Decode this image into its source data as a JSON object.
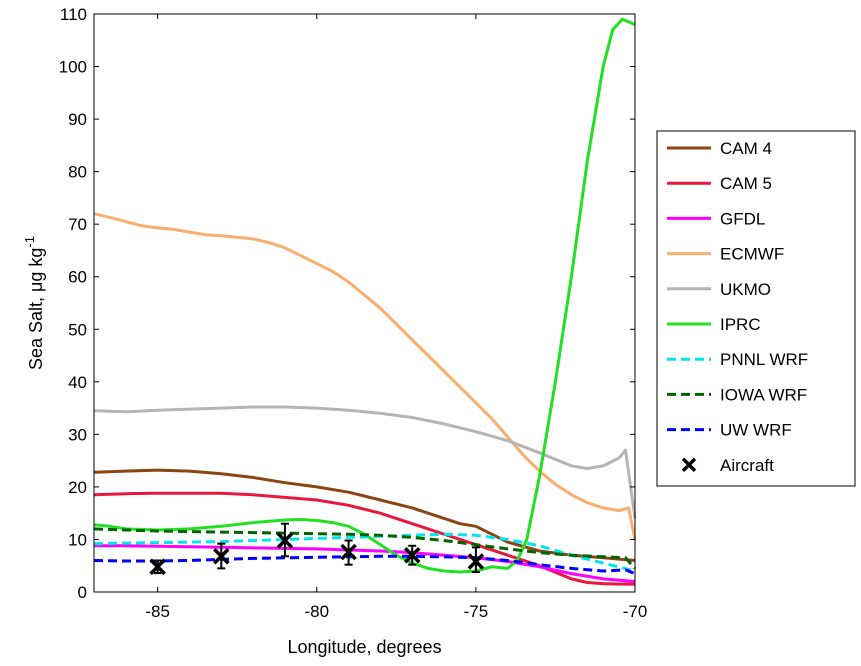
{
  "chart_data": {
    "type": "line",
    "xlabel": "Longitude, degrees",
    "ylabel_main": "Sea Salt, ",
    "ylabel_unit": "μg kg",
    "ylabel_exp": "-1",
    "xlim": [
      -87,
      -70
    ],
    "ylim": [
      0,
      110
    ],
    "xticks": [
      -85,
      -80,
      -75,
      -70
    ],
    "yticks": [
      0,
      10,
      20,
      30,
      40,
      50,
      60,
      70,
      80,
      90,
      100,
      110
    ],
    "grid": false,
    "legend_position": "right",
    "series": [
      {
        "name": "CAM 4",
        "color": "#8B4513",
        "dash": "solid",
        "x": [
          -87,
          -86,
          -85,
          -84,
          -83,
          -82,
          -81,
          -80,
          -79,
          -78,
          -77,
          -76,
          -75.5,
          -75,
          -74.5,
          -74,
          -73,
          -72,
          -71,
          -70
        ],
        "y": [
          22.8,
          23.0,
          23.2,
          23.0,
          22.5,
          21.8,
          20.8,
          20.0,
          19.0,
          17.5,
          16.0,
          14.0,
          13.0,
          12.5,
          11.0,
          9.5,
          7.8,
          7.0,
          6.5,
          6.0
        ]
      },
      {
        "name": "CAM 5",
        "color": "#E8173C",
        "dash": "solid",
        "x": [
          -87,
          -86,
          -85,
          -84,
          -83,
          -82,
          -81,
          -80,
          -79,
          -78,
          -77,
          -76,
          -75,
          -74,
          -73,
          -72,
          -71.5,
          -71,
          -70.5,
          -70
        ],
        "y": [
          18.5,
          18.7,
          18.8,
          18.8,
          18.8,
          18.5,
          18.0,
          17.5,
          16.5,
          15.0,
          13.0,
          11.0,
          9.0,
          7.0,
          5.0,
          2.5,
          1.8,
          1.6,
          1.5,
          1.5
        ]
      },
      {
        "name": "GFDL",
        "color": "#FF00FF",
        "dash": "solid",
        "x": [
          -87,
          -86,
          -85,
          -84,
          -83,
          -82,
          -81,
          -80,
          -79,
          -78,
          -77,
          -76,
          -75,
          -74,
          -73,
          -72,
          -71,
          -70
        ],
        "y": [
          8.8,
          8.8,
          8.7,
          8.6,
          8.5,
          8.4,
          8.3,
          8.2,
          8.0,
          7.8,
          7.5,
          7.0,
          6.5,
          5.8,
          4.8,
          3.5,
          2.5,
          2.0
        ]
      },
      {
        "name": "ECMWF",
        "color": "#F8AE6F",
        "dash": "solid",
        "x": [
          -87,
          -86.5,
          -86,
          -85.5,
          -85,
          -84.5,
          -84,
          -83.5,
          -83,
          -82.5,
          -82,
          -81.5,
          -81,
          -80.5,
          -80,
          -79.5,
          -79,
          -78.5,
          -78,
          -77.5,
          -77,
          -76.5,
          -76,
          -75.5,
          -75,
          -74.5,
          -74,
          -73.5,
          -73,
          -72.5,
          -72,
          -71.5,
          -71,
          -70.5,
          -70.2,
          -70
        ],
        "y": [
          72,
          71.3,
          70.5,
          69.7,
          69.3,
          69.0,
          68.5,
          68.0,
          67.8,
          67.5,
          67.2,
          66.5,
          65.5,
          64.0,
          62.5,
          61.0,
          59.0,
          56.5,
          54.0,
          51.0,
          48.0,
          45.0,
          42.0,
          39.0,
          36.0,
          33.0,
          29.5,
          26.0,
          23.0,
          20.5,
          18.5,
          17.0,
          16.0,
          15.5,
          16.0,
          10.0
        ]
      },
      {
        "name": "UKMO",
        "color": "#B4B4B4",
        "dash": "solid",
        "x": [
          -87,
          -86,
          -85,
          -84,
          -83,
          -82,
          -81,
          -80,
          -79,
          -78,
          -77,
          -76,
          -75,
          -74,
          -73,
          -72,
          -71.5,
          -71,
          -70.5,
          -70.3,
          -70
        ],
        "y": [
          34.5,
          34.3,
          34.6,
          34.8,
          35.0,
          35.2,
          35.2,
          35.0,
          34.6,
          34.0,
          33.2,
          32.0,
          30.5,
          28.8,
          26.5,
          24.0,
          23.5,
          24.0,
          25.5,
          27.0,
          14.0
        ]
      },
      {
        "name": "IPRC",
        "color": "#22E022",
        "dash": "solid",
        "x": [
          -87,
          -86.5,
          -86,
          -85,
          -84,
          -83,
          -82,
          -81,
          -80.5,
          -80,
          -79.5,
          -79,
          -78.5,
          -78,
          -77.5,
          -77,
          -76.5,
          -76,
          -75.5,
          -75,
          -74.5,
          -74,
          -73.7,
          -73.4,
          -73,
          -72.5,
          -72,
          -71.5,
          -71.0,
          -70.7,
          -70.4,
          -70.2,
          -70
        ],
        "y": [
          12.8,
          12.5,
          12.0,
          11.8,
          12.0,
          12.5,
          13.2,
          13.7,
          13.8,
          13.6,
          13.2,
          12.5,
          11.0,
          9.0,
          7.0,
          5.5,
          4.5,
          4.0,
          3.8,
          4.0,
          4.8,
          4.5,
          6.0,
          10.0,
          22.0,
          40.0,
          60.0,
          82.0,
          100.0,
          107.0,
          109.0,
          108.5,
          108.0
        ]
      },
      {
        "name": "PNNL WRF",
        "color": "#00E5EE",
        "dash": "dashed",
        "x": [
          -87,
          -86,
          -85,
          -84,
          -83,
          -82,
          -81,
          -80,
          -79,
          -78,
          -77,
          -76,
          -75,
          -74,
          -73,
          -72,
          -71,
          -70
        ],
        "y": [
          9.2,
          9.3,
          9.4,
          9.5,
          9.6,
          9.8,
          10.0,
          10.2,
          10.4,
          10.6,
          10.8,
          11.0,
          10.8,
          10.0,
          8.8,
          7.0,
          5.5,
          4.0
        ]
      },
      {
        "name": "IOWA WRF",
        "color": "#006400",
        "dash": "dashed",
        "x": [
          -87,
          -86,
          -85,
          -84,
          -83,
          -82,
          -81,
          -80,
          -79,
          -78,
          -77,
          -76,
          -75,
          -74,
          -73,
          -72,
          -71,
          -70.3,
          -70
        ],
        "y": [
          12.0,
          11.8,
          11.6,
          11.5,
          11.4,
          11.3,
          11.2,
          11.1,
          11.0,
          10.8,
          10.4,
          9.8,
          9.0,
          8.2,
          7.5,
          7.0,
          6.7,
          6.5,
          4.5
        ]
      },
      {
        "name": "UW WRF",
        "color": "#0000FF",
        "dash": "dashed",
        "x": [
          -87,
          -86,
          -85,
          -84,
          -83,
          -82,
          -81,
          -80,
          -79,
          -78,
          -77,
          -76,
          -75,
          -74,
          -73,
          -72,
          -71,
          -70.3,
          -70
        ],
        "y": [
          6.0,
          5.9,
          5.9,
          6.0,
          6.2,
          6.4,
          6.5,
          6.6,
          6.7,
          6.8,
          6.8,
          6.7,
          6.5,
          6.0,
          5.2,
          4.5,
          4.0,
          4.2,
          3.5
        ]
      }
    ],
    "aircraft": {
      "name": "Aircraft",
      "color": "#000000",
      "points": [
        {
          "x": -85,
          "y": 4.8,
          "err_lo": 3.6,
          "err_hi": 6.0
        },
        {
          "x": -83,
          "y": 6.8,
          "err_lo": 4.5,
          "err_hi": 9.2
        },
        {
          "x": -81,
          "y": 9.8,
          "err_lo": 6.8,
          "err_hi": 13.0
        },
        {
          "x": -79,
          "y": 7.6,
          "err_lo": 5.2,
          "err_hi": 9.8
        },
        {
          "x": -77,
          "y": 7.0,
          "err_lo": 5.2,
          "err_hi": 8.8
        },
        {
          "x": -75,
          "y": 5.8,
          "err_lo": 3.8,
          "err_hi": 8.5
        }
      ]
    }
  }
}
